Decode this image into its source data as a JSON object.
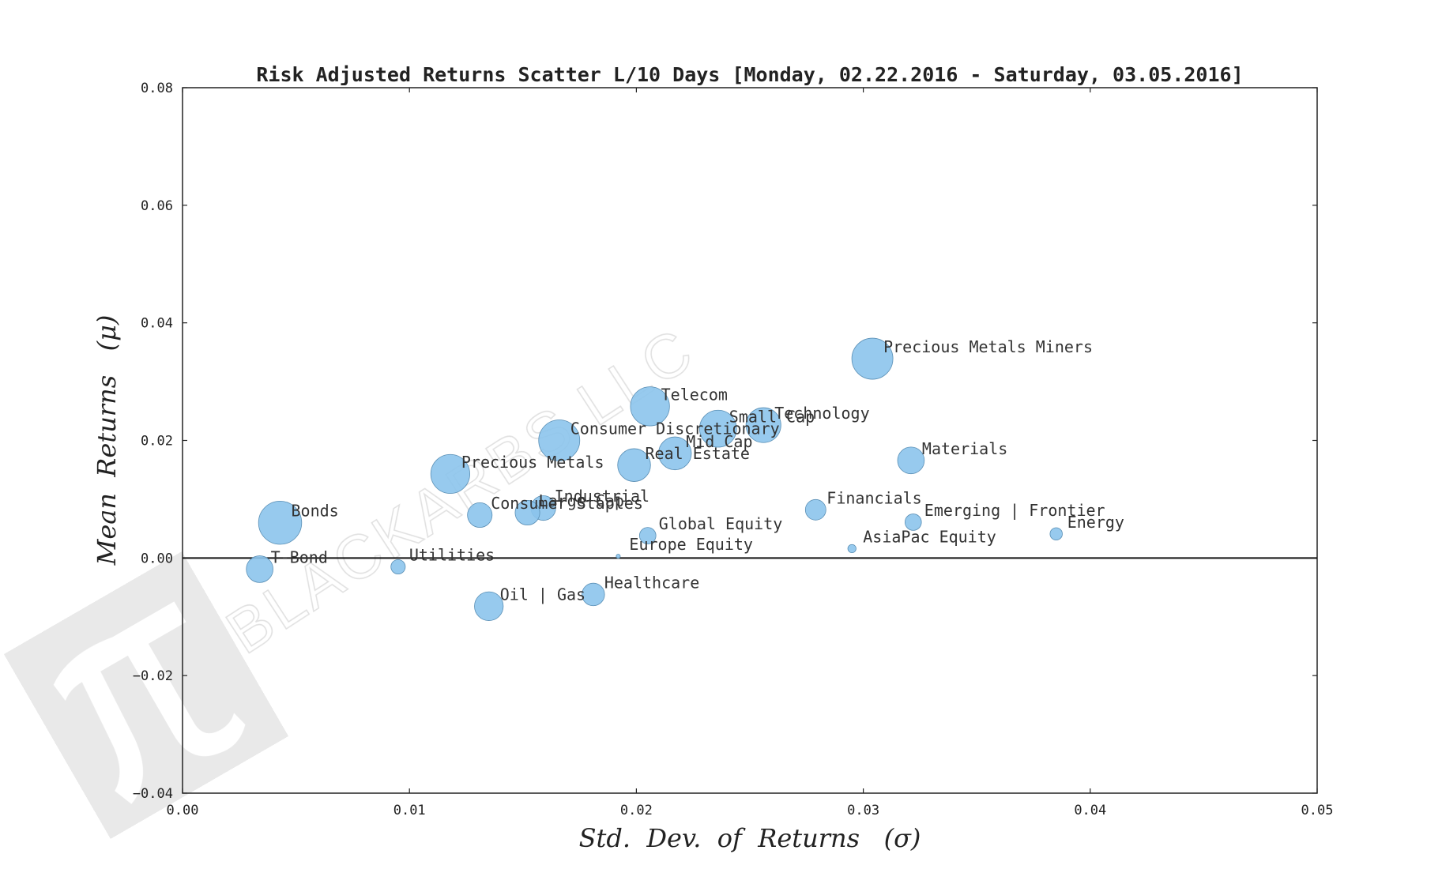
{
  "chart_data": {
    "type": "scatter",
    "title": "Risk Adjusted Returns Scatter L/10 Days [Monday, 02.22.2016 - Saturday, 03.05.2016]",
    "xlabel": "Std.  Dev.  of  Returns   (σ)",
    "ylabel": "Mean  Returns   (μ)",
    "xlim": [
      0.0,
      0.05
    ],
    "ylim": [
      -0.04,
      0.08
    ],
    "xticks": [
      0.0,
      0.01,
      0.02,
      0.03,
      0.04,
      0.05
    ],
    "yticks": [
      -0.04,
      -0.02,
      0.0,
      0.02,
      0.04,
      0.06,
      0.08
    ],
    "xtick_labels": [
      "0.00",
      "0.01",
      "0.02",
      "0.03",
      "0.04",
      "0.05"
    ],
    "ytick_labels": [
      "−0.04",
      "−0.02",
      "0.00",
      "0.02",
      "0.04",
      "0.06",
      "0.08"
    ],
    "reference_line_y": 0.0,
    "marker_color": "#8cc4ec",
    "points": [
      {
        "name": "Precious Metals Miners",
        "x": 0.0304,
        "y": 0.0339,
        "size": 20
      },
      {
        "name": "Telecom",
        "x": 0.0206,
        "y": 0.0258,
        "size": 19
      },
      {
        "name": "Technology",
        "x": 0.0256,
        "y": 0.0226,
        "size": 17
      },
      {
        "name": "Small Cap",
        "x": 0.0236,
        "y": 0.022,
        "size": 18
      },
      {
        "name": "Consumer Discretionary",
        "x": 0.0166,
        "y": 0.02,
        "size": 20
      },
      {
        "name": "Mid Cap",
        "x": 0.0217,
        "y": 0.0178,
        "size": 16
      },
      {
        "name": "Real Estate",
        "x": 0.0199,
        "y": 0.0158,
        "size": 16
      },
      {
        "name": "Materials",
        "x": 0.0321,
        "y": 0.0166,
        "size": 13
      },
      {
        "name": "Precious Metals",
        "x": 0.0118,
        "y": 0.0143,
        "size": 19
      },
      {
        "name": "Industrial",
        "x": 0.0159,
        "y": 0.0085,
        "size": 12
      },
      {
        "name": "Large Cap",
        "x": 0.0152,
        "y": 0.0077,
        "size": 12
      },
      {
        "name": "Consumer Staples",
        "x": 0.0131,
        "y": 0.0073,
        "size": 12
      },
      {
        "name": "Financials",
        "x": 0.0279,
        "y": 0.0082,
        "size": 10
      },
      {
        "name": "Bonds",
        "x": 0.0043,
        "y": 0.006,
        "size": 21
      },
      {
        "name": "Emerging | Frontier",
        "x": 0.0322,
        "y": 0.0061,
        "size": 8
      },
      {
        "name": "Energy",
        "x": 0.0385,
        "y": 0.0041,
        "size": 6
      },
      {
        "name": "Global Equity",
        "x": 0.0205,
        "y": 0.0038,
        "size": 8
      },
      {
        "name": "AsiaPac Equity",
        "x": 0.0295,
        "y": 0.0016,
        "size": 4
      },
      {
        "name": "Europe Equity",
        "x": 0.0192,
        "y": 0.0003,
        "size": 2
      },
      {
        "name": "Utilities",
        "x": 0.0095,
        "y": -0.0015,
        "size": 7
      },
      {
        "name": "T-Bond",
        "x": 0.0034,
        "y": -0.0019,
        "size": 13
      },
      {
        "name": "Healthcare",
        "x": 0.0181,
        "y": -0.0062,
        "size": 11
      },
      {
        "name": "Oil | Gas",
        "x": 0.0135,
        "y": -0.0082,
        "size": 14
      }
    ]
  },
  "watermark": {
    "text": "BLACKARBS LLC",
    "logo_icon": "pi-logo-icon"
  }
}
